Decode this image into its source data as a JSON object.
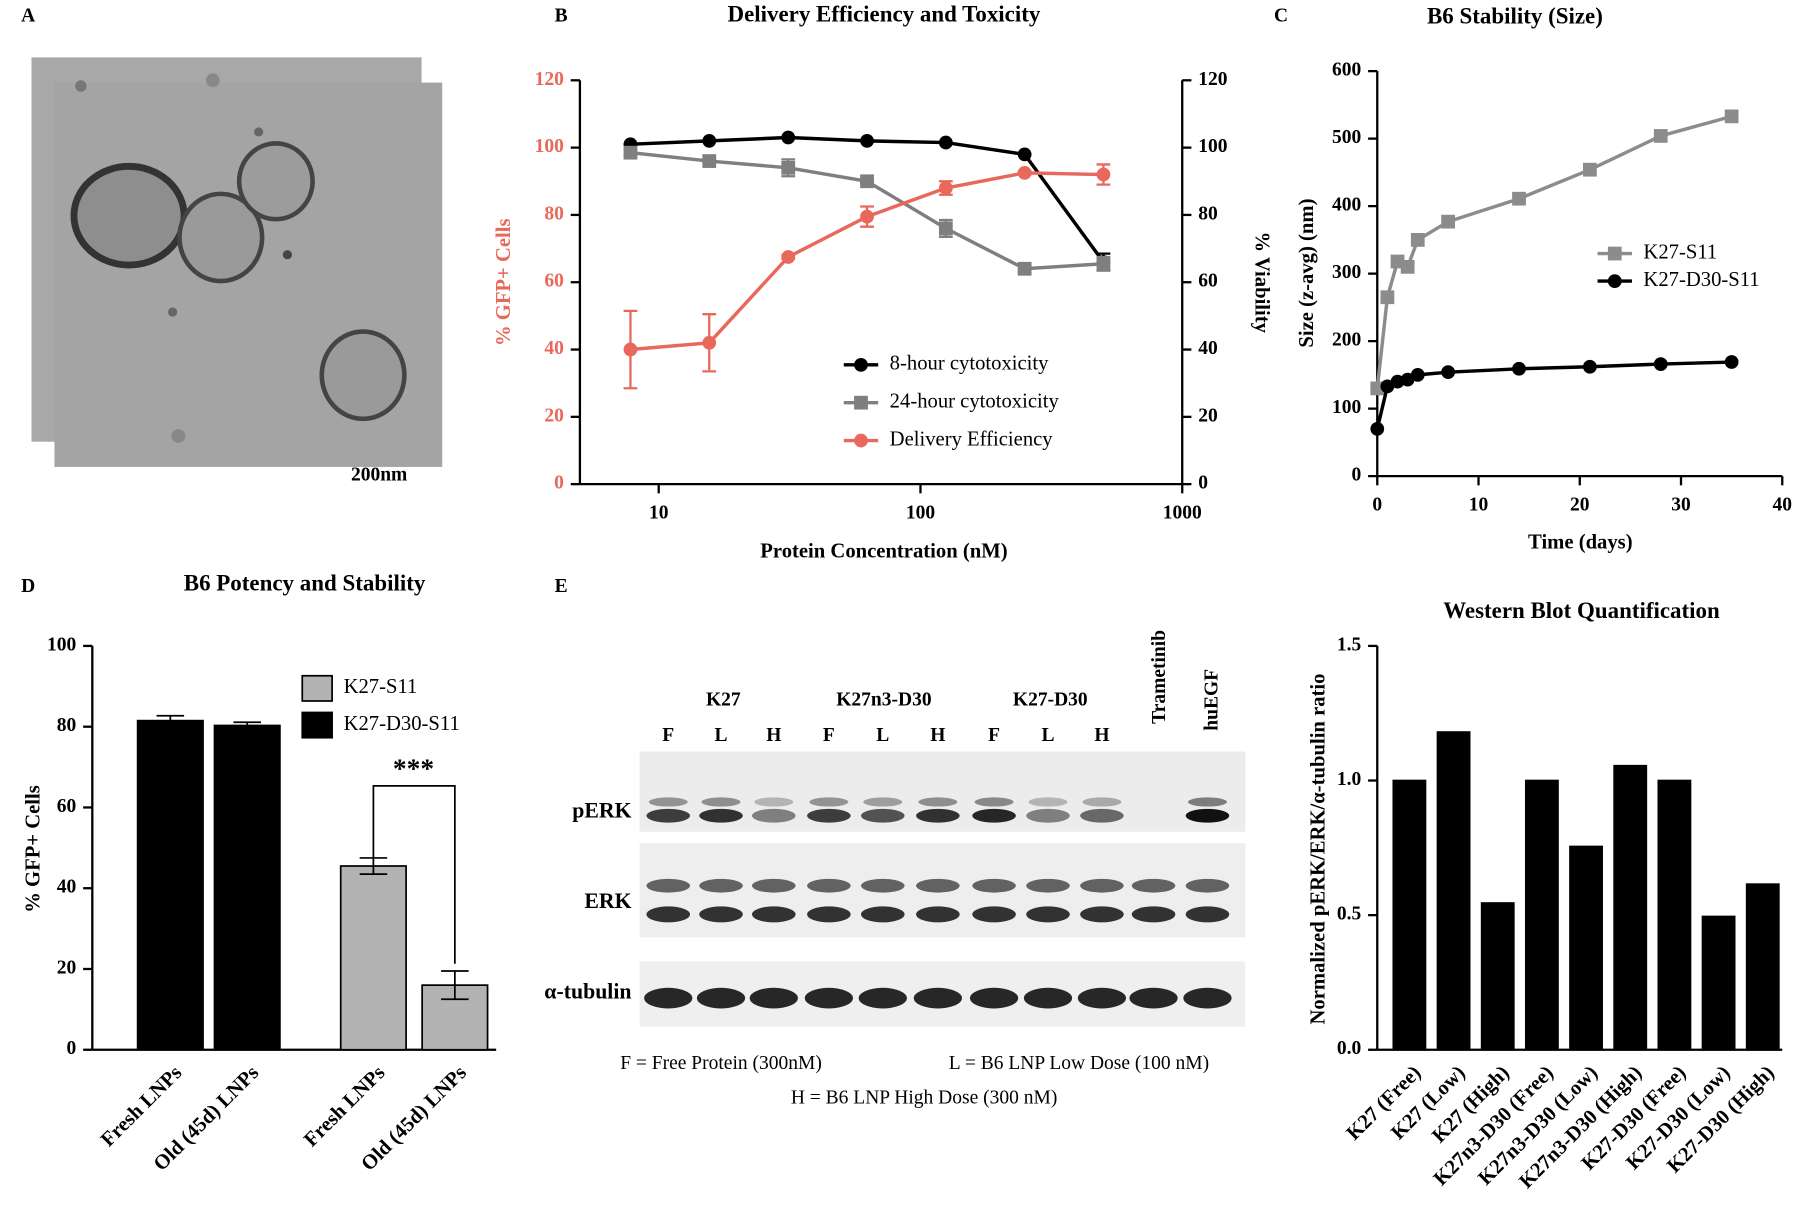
{
  "panel_letters": [
    "A",
    "B",
    "C",
    "D",
    "E"
  ],
  "scale_bar": "200nm",
  "blot": {
    "groups": [
      "K27",
      "K27n3-D30",
      "K27-D30"
    ],
    "lanes": [
      "F",
      "L",
      "H",
      "F",
      "L",
      "H",
      "F",
      "L",
      "H"
    ],
    "controls": [
      "Trametinib",
      "huEGF"
    ],
    "rows": [
      "pERK",
      "ERK",
      "α-tubulin"
    ],
    "notes": [
      "F = Free Protein (300nM)",
      "L = B6 LNP Low Dose (100 nM)",
      "H = B6 LNP High Dose (300 nM)"
    ]
  },
  "chart_data": [
    {
      "type": "line",
      "title": "Delivery Efficiency and Toxicity",
      "xlabel": "Protein Concentration (nM)",
      "ylabel": "% GFP+ Cells",
      "y2label": "% Viability",
      "ylabel_color": "#e8695b",
      "xscale": "log",
      "xlim": [
        5,
        1000
      ],
      "xticks": [
        10,
        100,
        1000
      ],
      "ylim": [
        0,
        120
      ],
      "yticks": [
        0,
        20,
        40,
        60,
        80,
        100,
        120
      ],
      "y2lim": [
        0,
        120
      ],
      "y2ticks": [
        0,
        20,
        40,
        60,
        80,
        100,
        120
      ],
      "x": [
        7.8,
        15.6,
        31.25,
        62.5,
        125,
        250,
        500
      ],
      "series": [
        {
          "name": "8-hour cytotoxicity",
          "color": "#000000",
          "marker": "circle",
          "axis": "y2",
          "values": [
            101,
            102,
            103,
            102,
            101.5,
            98,
            66
          ],
          "errors": [
            0,
            0,
            0,
            0,
            0,
            0,
            2.5
          ]
        },
        {
          "name": "24-hour cytotoxicity",
          "color": "#7f7f7f",
          "marker": "square",
          "axis": "y2",
          "values": [
            98.5,
            96,
            94,
            90,
            76,
            64,
            65.5
          ],
          "errors": [
            1,
            0.5,
            2.5,
            0.5,
            2.5,
            1,
            2
          ]
        },
        {
          "name": "Delivery Efficiency",
          "color": "#e8695b",
          "marker": "circle",
          "values": [
            40,
            42,
            67.5,
            79.5,
            88,
            92.5,
            92
          ],
          "errors": [
            11.5,
            8.5,
            0.5,
            3,
            2,
            0.5,
            3
          ]
        }
      ]
    },
    {
      "type": "line",
      "title": "B6 Stability (Size)",
      "xlabel": "Time (days)",
      "ylabel": "Size (z-avg) (nm)",
      "xlim": [
        0,
        40
      ],
      "xticks": [
        0,
        10,
        20,
        30,
        40
      ],
      "ylim": [
        0,
        600
      ],
      "yticks": [
        0,
        100,
        200,
        300,
        400,
        500,
        600
      ],
      "x": [
        0,
        1,
        2,
        3,
        4,
        7,
        14,
        21,
        28,
        35
      ],
      "series": [
        {
          "name": "K27-S11",
          "color": "#8c8c8c",
          "marker": "square",
          "values": [
            130,
            265,
            318,
            310,
            350,
            377,
            411,
            454,
            504,
            533
          ]
        },
        {
          "name": "K27-D30-S11",
          "color": "#000000",
          "marker": "circle",
          "values": [
            70,
            133,
            140,
            143,
            150,
            154,
            159,
            162,
            166,
            169
          ]
        }
      ]
    },
    {
      "type": "bar",
      "title": "B6 Potency and Stability",
      "ylabel": "% GFP+ Cells",
      "ylim": [
        0,
        100
      ],
      "yticks": [
        0,
        20,
        40,
        60,
        80,
        100
      ],
      "categories": [
        "Fresh LNPs",
        "Old (45d) LNPs",
        "Fresh LNPs",
        "Old (45d) LNPs"
      ],
      "annotation": "***",
      "series": [
        {
          "name": "K27-S11",
          "color": "#b3b3b3",
          "values": [
            null,
            null,
            45.5,
            16
          ],
          "errors": [
            null,
            null,
            2,
            3.5
          ]
        },
        {
          "name": "K27-D30-S11",
          "color": "#000000",
          "values": [
            81.5,
            80.3,
            null,
            null
          ],
          "errors": [
            1.2,
            0.8,
            null,
            null
          ]
        }
      ]
    },
    {
      "type": "bar",
      "title": "Western Blot Quantification",
      "ylabel": "Normalized pERK/ERK/α-tubulin ratio",
      "ylim": [
        0,
        1.5
      ],
      "yticks": [
        {
          "value": 0,
          "label": "0.0"
        },
        {
          "value": 0.5,
          "label": "0.5"
        },
        {
          "value": 1,
          "label": "1.0"
        },
        {
          "value": 1.5,
          "label": "1.5"
        }
      ],
      "categories": [
        "K27 (Free)",
        "K27 (Low)",
        "K27 (High)",
        "K27n3-D30 (Free)",
        "K27n3-D30 (Low)",
        "K27n3-D30 (High)",
        "K27-D30 (Free)",
        "K27-D30 (Low)",
        "K27-D30 (High)"
      ],
      "color": "#000000",
      "values": [
        1,
        1.18,
        0.545,
        1,
        0.755,
        1.055,
        1,
        0.495,
        0.615
      ]
    }
  ]
}
